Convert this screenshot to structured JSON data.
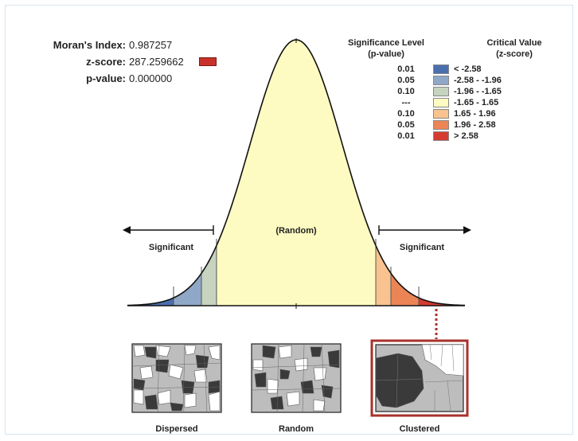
{
  "stats": {
    "morans_label": "Moran's Index:",
    "morans_value": "0.987257",
    "zscore_label": "z-score:",
    "zscore_value": "287.259662",
    "pvalue_label": "p-value:",
    "pvalue_value": "0.000000"
  },
  "legend": {
    "sig_header_line1": "Significance Level",
    "sig_header_line2": "(p-value)",
    "crit_header_line1": "Critical Value",
    "crit_header_line2": "(z-score)",
    "rows": [
      {
        "sig": "0.01",
        "crit": "< -2.58",
        "color": "#4a6fae"
      },
      {
        "sig": "0.05",
        "crit": "-2.58 - -1.96",
        "color": "#90a8c8"
      },
      {
        "sig": "0.10",
        "crit": "-1.96 - -1.65",
        "color": "#c6d3bf"
      },
      {
        "sig": "---",
        "crit": "-1.65 - 1.65",
        "color": "#fdfbc1"
      },
      {
        "sig": "0.10",
        "crit": "1.65 - 1.96",
        "color": "#f8c38f"
      },
      {
        "sig": "0.05",
        "crit": "1.96 - 2.58",
        "color": "#ec8556"
      },
      {
        "sig": "0.01",
        "crit": "> 2.58",
        "color": "#d63b30"
      }
    ]
  },
  "curve": {
    "random_label": "(Random)",
    "left_label": "Significant",
    "right_label": "Significant"
  },
  "maps": {
    "dispersed": "Dispersed",
    "random": "Random",
    "clustered": "Clustered",
    "highlight_color": "#a8322c"
  }
}
